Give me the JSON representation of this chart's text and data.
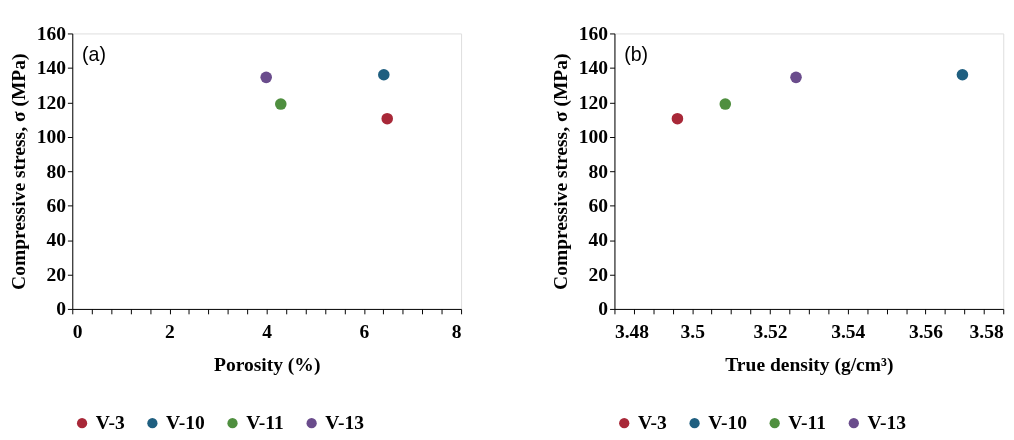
{
  "chart_data": [
    {
      "type": "scatter",
      "xlabel": "Porosity (%)",
      "ylabel": "Compressive stress, σ (MPa)",
      "annotations": [
        "(a)"
      ],
      "marker": "circle",
      "legend": "bottom",
      "grid": false,
      "xlim": [
        0,
        8
      ],
      "ylim": [
        0,
        160
      ],
      "xticks": [
        0,
        {
          "value": 0.4,
          "label": null
        },
        {
          "value": 0.8,
          "label": null
        },
        {
          "value": 1.2,
          "label": null
        },
        {
          "value": 1.6,
          "label": null
        },
        2,
        {
          "value": 2.4,
          "label": null
        },
        {
          "value": 2.8,
          "label": null
        },
        {
          "value": 3.2,
          "label": null
        },
        {
          "value": 3.6,
          "label": null
        },
        4,
        {
          "value": 4.4,
          "label": null
        },
        {
          "value": 4.8,
          "label": null
        },
        {
          "value": 5.2,
          "label": null
        },
        {
          "value": 5.6,
          "label": null
        },
        6,
        {
          "value": 6.4,
          "label": null
        },
        {
          "value": 6.8,
          "label": null
        },
        {
          "value": 7.2,
          "label": null
        },
        {
          "value": 7.6,
          "label": null
        },
        8
      ],
      "yticks": [
        0,
        20,
        40,
        60,
        80,
        100,
        120,
        140,
        160
      ],
      "series": [
        {
          "name": "V-3",
          "color": "#a82838",
          "x": [
            6.48
          ],
          "values": [
            110.5
          ]
        },
        {
          "name": "V-10",
          "color": "#1f5f80",
          "x": [
            6.41
          ],
          "values": [
            136
          ]
        },
        {
          "name": "V-11",
          "color": "#4f8f3f",
          "x": [
            4.29
          ],
          "values": [
            119
          ]
        },
        {
          "name": "V-13",
          "color": "#6a4c8c",
          "x": [
            3.99
          ],
          "values": [
            134.5
          ]
        }
      ]
    },
    {
      "type": "scatter",
      "xlabel": "True density (g/cm³)",
      "ylabel": "Compressive stress, σ (MPa)",
      "annotations": [
        "(b)"
      ],
      "marker": "circle",
      "legend": "bottom",
      "grid": false,
      "xlim": [
        3.48,
        3.58
      ],
      "ylim": [
        0,
        160
      ],
      "xticks": [
        3.48,
        {
          "value": 3.485,
          "label": null
        },
        {
          "value": 3.49,
          "label": null
        },
        {
          "value": 3.495,
          "label": null
        },
        3.5,
        {
          "value": 3.505,
          "label": null
        },
        {
          "value": 3.51,
          "label": null
        },
        {
          "value": 3.515,
          "label": null
        },
        3.52,
        {
          "value": 3.525,
          "label": null
        },
        {
          "value": 3.53,
          "label": null
        },
        {
          "value": 3.535,
          "label": null
        },
        3.54,
        {
          "value": 3.545,
          "label": null
        },
        {
          "value": 3.55,
          "label": null
        },
        {
          "value": 3.555,
          "label": null
        },
        3.56,
        {
          "value": 3.565,
          "label": null
        },
        {
          "value": 3.57,
          "label": null
        },
        {
          "value": 3.575,
          "label": null
        },
        3.58
      ],
      "yticks": [
        0,
        20,
        40,
        60,
        80,
        100,
        120,
        140,
        160
      ],
      "series": [
        {
          "name": "V-3",
          "color": "#a82838",
          "x": [
            3.4962
          ],
          "values": [
            110.5
          ]
        },
        {
          "name": "V-10",
          "color": "#1f5f80",
          "x": [
            3.5695
          ],
          "values": [
            136
          ]
        },
        {
          "name": "V-11",
          "color": "#4f8f3f",
          "x": [
            3.5085
          ],
          "values": [
            119
          ]
        },
        {
          "name": "V-13",
          "color": "#6a4c8c",
          "x": [
            3.5267
          ],
          "values": [
            134.5
          ]
        }
      ]
    }
  ]
}
